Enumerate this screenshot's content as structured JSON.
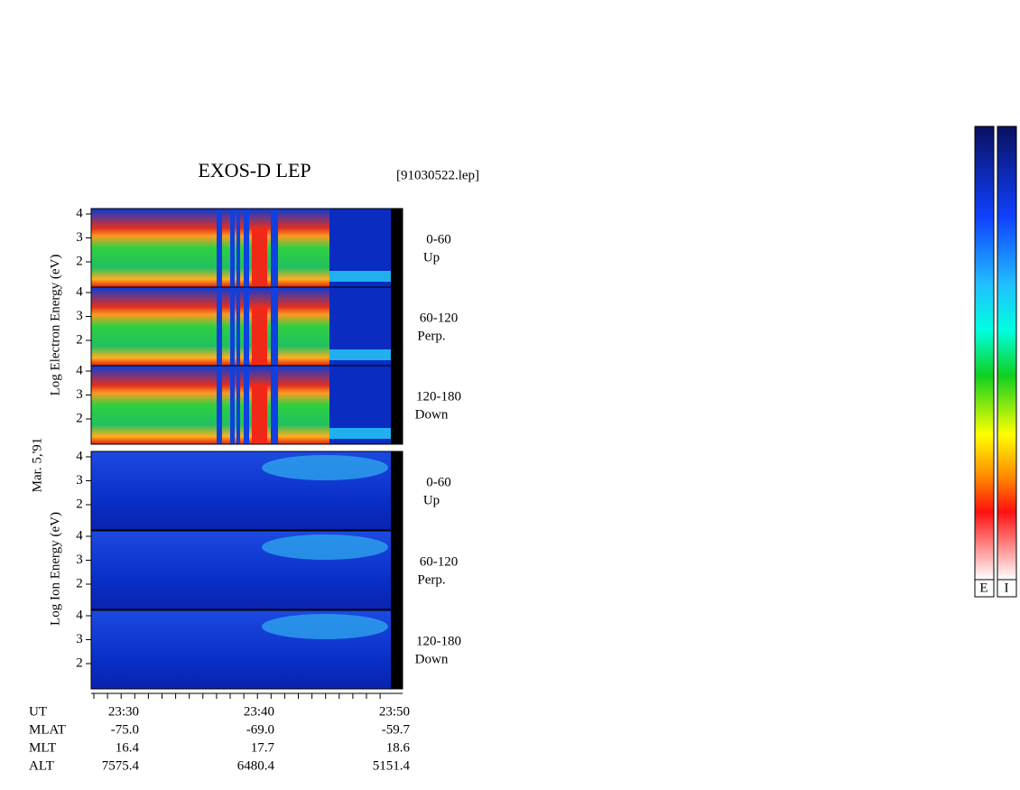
{
  "title": "EXOS-D LEP",
  "file": "[91030522.lep]",
  "date": "Mar. 5,'91",
  "electron_label": "Log   Electron   Energy  (eV)",
  "ion_label": "Log   Ion   Energy  (eV)",
  "yticks": [
    4,
    3,
    2
  ],
  "panels": [
    {
      "species": "electron",
      "range": "0-60",
      "direction": "Up"
    },
    {
      "species": "electron",
      "range": "60-120",
      "direction": "Perp."
    },
    {
      "species": "electron",
      "range": "120-180",
      "direction": "Down"
    },
    {
      "species": "ion",
      "range": "0-60",
      "direction": "Up"
    },
    {
      "species": "ion",
      "range": "60-120",
      "direction": "Perp."
    },
    {
      "species": "ion",
      "range": "120-180",
      "direction": "Down"
    }
  ],
  "orbit_table": [
    [
      "UT",
      "23:30",
      "23:40",
      "23:50"
    ],
    [
      "MLAT",
      "-75.0",
      "-69.0",
      "-59.7"
    ],
    [
      "MLT",
      "16.4",
      "17.7",
      "18.6"
    ],
    [
      "ALT",
      "7575.4",
      "6480.4",
      "5151.4"
    ]
  ],
  "colorbars": [
    "E",
    "I"
  ]
}
